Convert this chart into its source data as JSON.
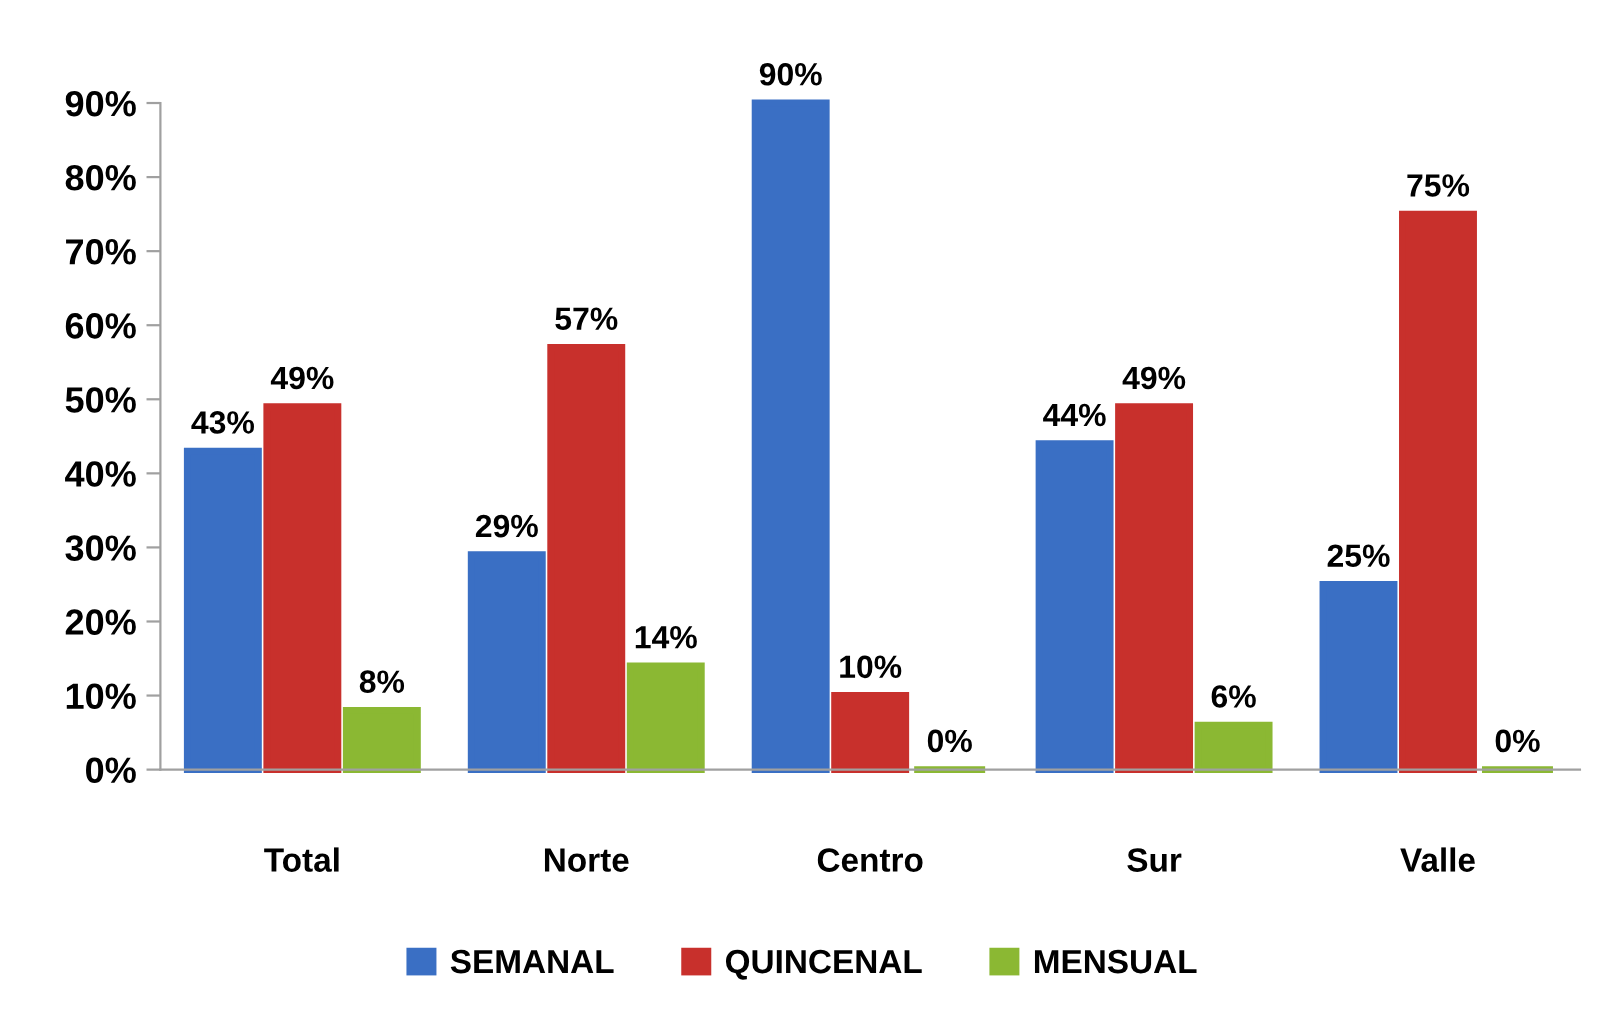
{
  "chart_data": {
    "type": "bar",
    "categories": [
      "Total",
      "Norte",
      "Centro",
      "Sur",
      "Valle"
    ],
    "series": [
      {
        "name": "SEMANAL",
        "color": "#3a6fc4",
        "values": [
          43,
          29,
          90,
          44,
          25
        ],
        "value_labels": [
          "43%",
          "29%",
          "90%",
          "44%",
          "25%"
        ]
      },
      {
        "name": "QUINCENAL",
        "color": "#c8302c",
        "values": [
          49,
          57,
          10,
          49,
          75
        ],
        "value_labels": [
          "49%",
          "57%",
          "10%",
          "49%",
          "75%"
        ]
      },
      {
        "name": "MENSUAL",
        "color": "#8bb833",
        "values": [
          8,
          14,
          0,
          6,
          0
        ],
        "value_labels": [
          "8%",
          "14%",
          "0%",
          "6%",
          "0%"
        ]
      }
    ],
    "ylim": [
      0,
      90
    ],
    "yticks": [
      {
        "value": 0,
        "label": "0%"
      },
      {
        "value": 10,
        "label": "10%"
      },
      {
        "value": 20,
        "label": "20%"
      },
      {
        "value": 30,
        "label": "30%"
      },
      {
        "value": 40,
        "label": "40%"
      },
      {
        "value": 50,
        "label": "50%"
      },
      {
        "value": 60,
        "label": "60%"
      },
      {
        "value": 70,
        "label": "70%"
      },
      {
        "value": 80,
        "label": "80%"
      },
      {
        "value": 90,
        "label": "90%"
      }
    ],
    "grid": false,
    "legend": "bottom"
  }
}
